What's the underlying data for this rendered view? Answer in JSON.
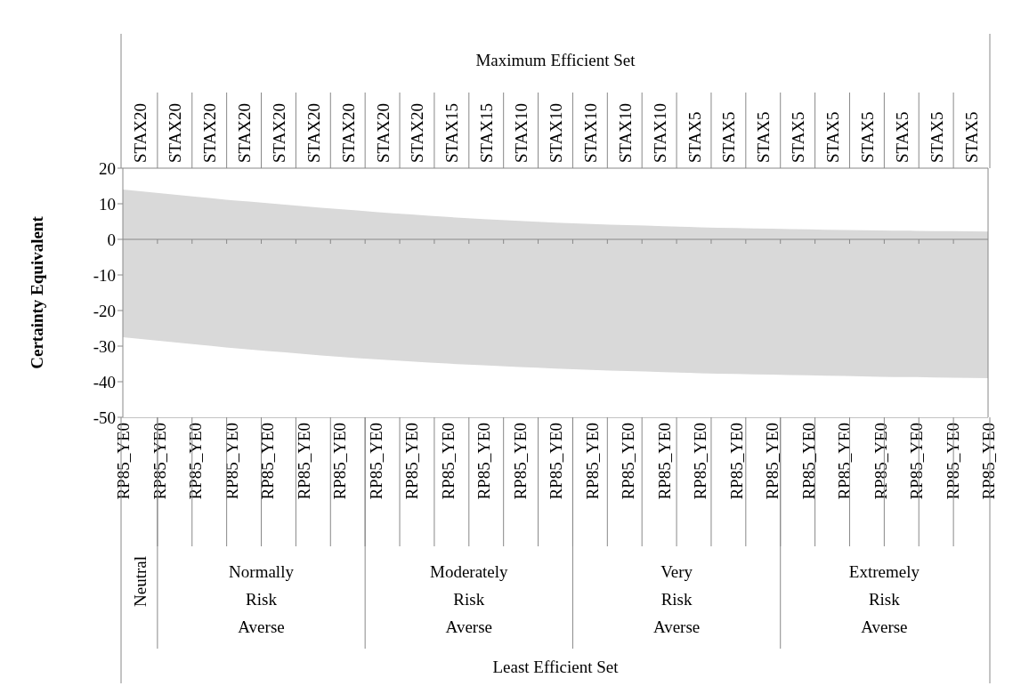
{
  "chart_data": {
    "type": "area",
    "ylabel": "Certainty Equivalent",
    "x2label": "Maximum Efficient Set",
    "categories": [
      "RP85_YE0",
      "RP85_YE0",
      "RP85_YE0",
      "RP85_YE0",
      "RP85_YE0",
      "RP85_YE0",
      "RP85_YE0",
      "RP85_YE0",
      "RP85_YE0",
      "RP85_YE0",
      "RP85_YE0",
      "RP85_YE0",
      "RP85_YE0",
      "RP85_YE0",
      "RP85_YE0",
      "RP85_YE0",
      "RP85_YE0",
      "RP85_YE0",
      "RP85_YE0",
      "RP85_YE0",
      "RP85_YE0",
      "RP85_YE0",
      "RP85_YE0",
      "RP85_YE0",
      "RP85_YE0"
    ],
    "annotations": [
      "STAX20",
      "STAX20",
      "STAX20",
      "STAX20",
      "STAX20",
      "STAX20",
      "STAX20",
      "STAX20",
      "STAX20",
      "STAX15",
      "STAX15",
      "STAX10",
      "STAX10",
      "STAX10",
      "STAX10",
      "STAX10",
      "STAX5",
      "STAX5",
      "STAX5",
      "STAX5",
      "STAX5",
      "STAX5",
      "STAX5",
      "STAX5",
      "STAX5",
      "Neutral",
      "Normally Risk Averse",
      "Moderately Risk Averse",
      "Very Risk Averse",
      "Extremely Risk Averse",
      "Least Efficient Set"
    ],
    "series": [
      {
        "color": "#d9d9d9",
        "values": [
          14,
          13,
          12,
          11,
          10.2,
          9.3,
          8.5,
          7.7,
          7,
          6.3,
          5.7,
          5.2,
          4.7,
          4.3,
          4,
          3.7,
          3.4,
          3.2,
          3,
          2.8,
          2.6,
          2.5,
          2.4,
          2.3,
          2.2
        ]
      },
      {
        "color": "#d9d9d9",
        "values": [
          -27.5,
          -28.5,
          -29.5,
          -30.5,
          -31.4,
          -32.2,
          -33,
          -33.7,
          -34.3,
          -34.9,
          -35.4,
          -35.9,
          -36.3,
          -36.7,
          -37,
          -37.3,
          -37.6,
          -37.8,
          -38,
          -38.2,
          -38.4,
          -38.6,
          -38.7,
          -38.9,
          -39
        ]
      }
    ],
    "ylim": [
      -50,
      20
    ],
    "yticks": [
      -50,
      -40,
      -30,
      -20,
      -10,
      0,
      10,
      20
    ]
  }
}
